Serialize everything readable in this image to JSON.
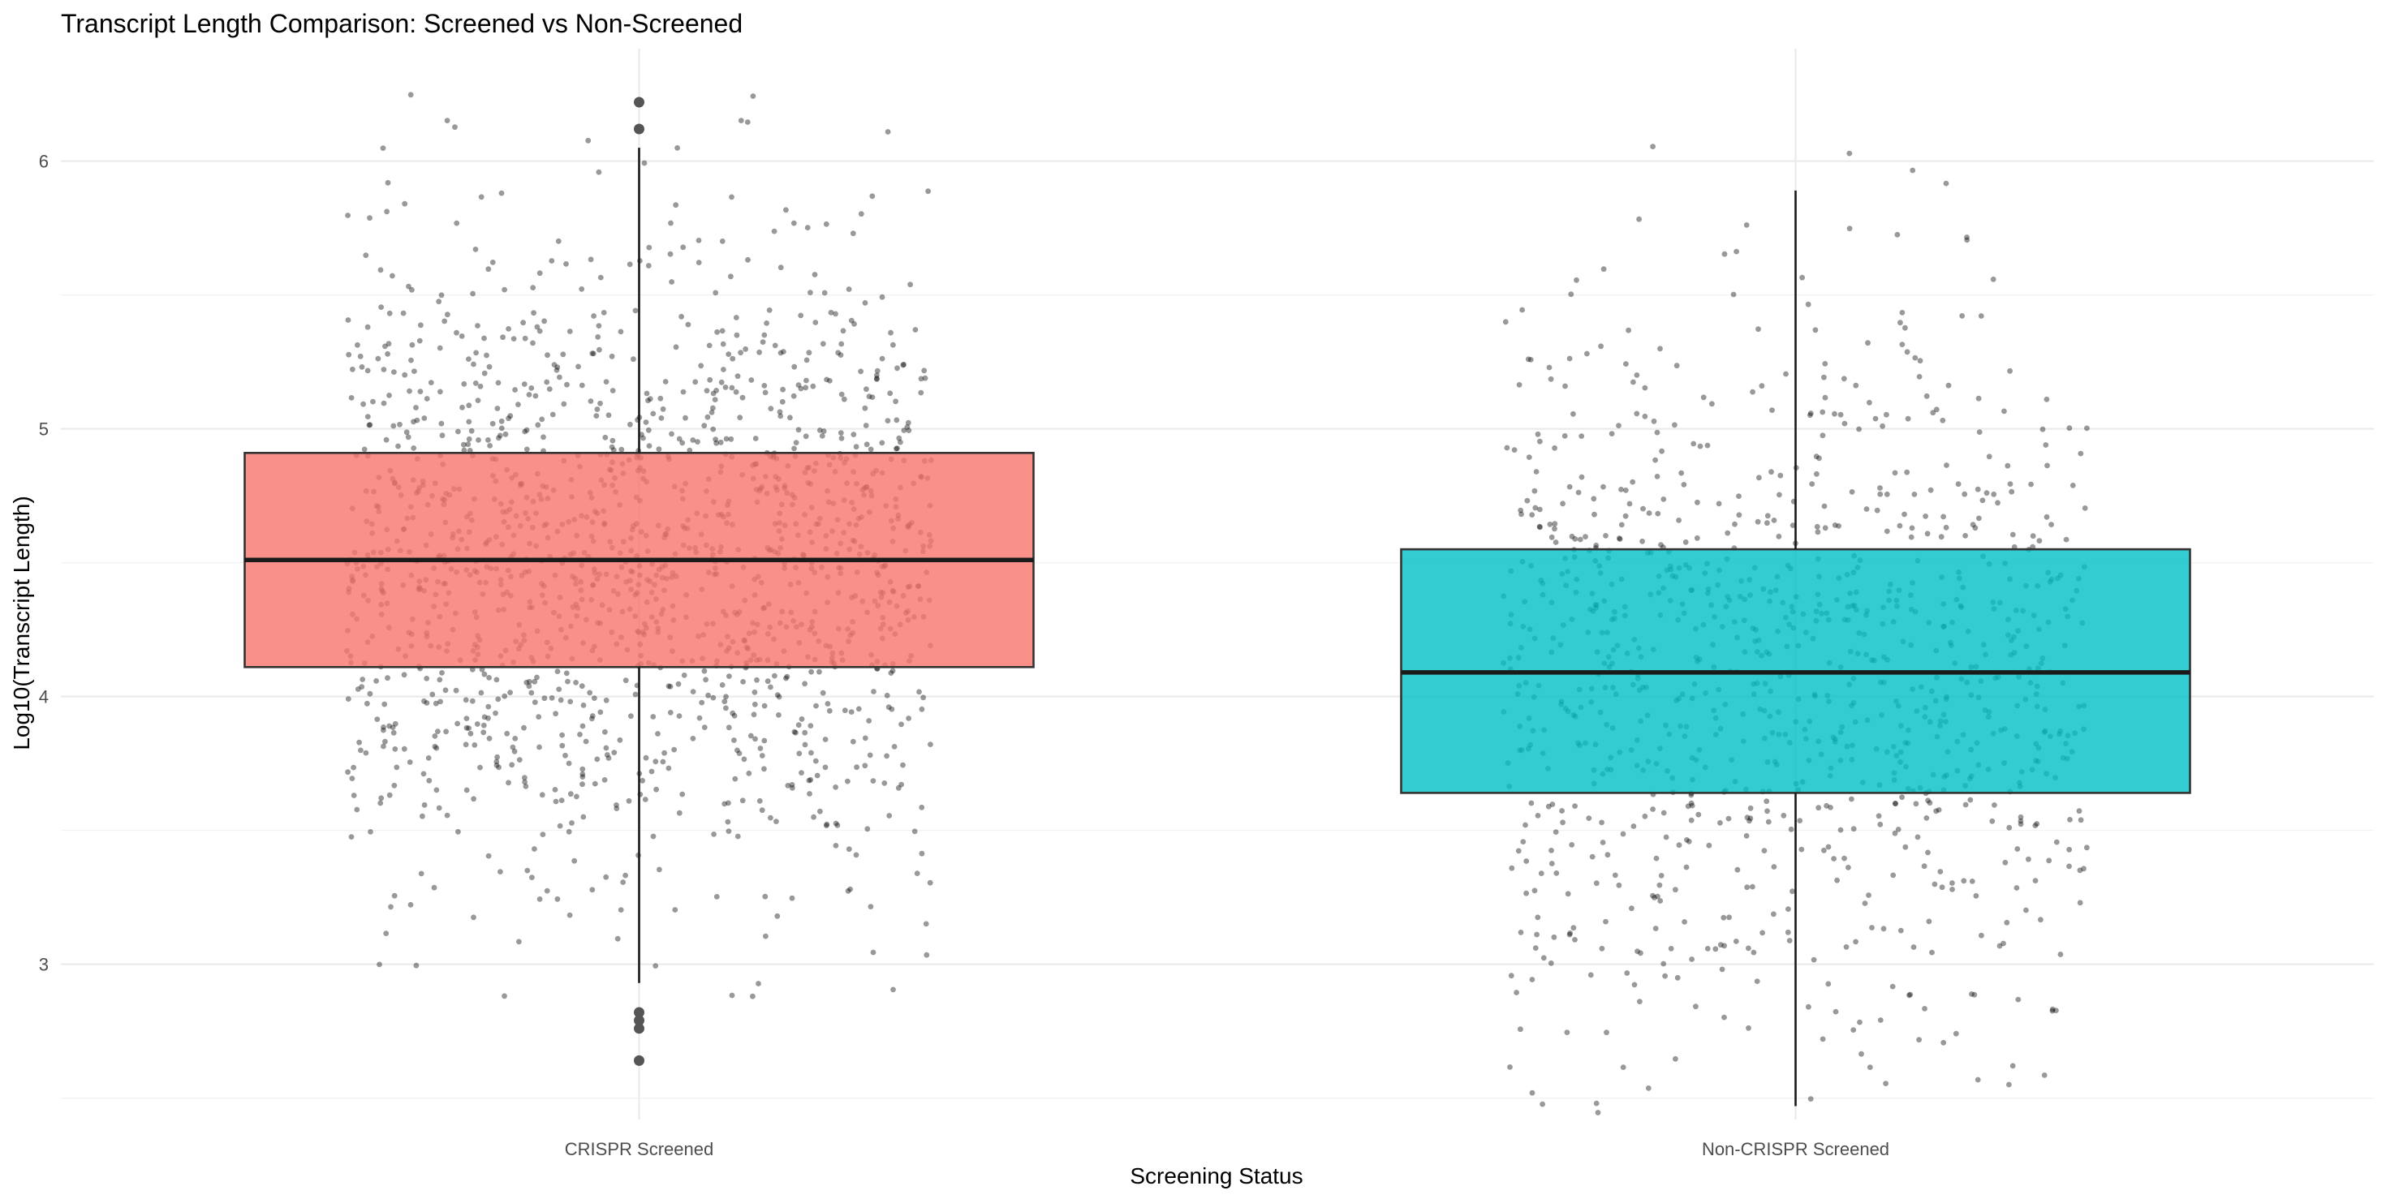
{
  "chart_data": {
    "type": "boxplot",
    "title": "Transcript Length Comparison: Screened vs Non-Screened",
    "xlabel": "Screening Status",
    "ylabel": "Log10(Transcript Length)",
    "ylim": [
      2.42,
      6.42
    ],
    "yticks": [
      3,
      4,
      5,
      6
    ],
    "categories": [
      "CRISPR Screened",
      "Non-CRISPR Screened"
    ],
    "grid": true,
    "legend": "none",
    "boxes": [
      {
        "category": "CRISPR Screened",
        "color": "#f8766d",
        "q1": 4.11,
        "median": 4.51,
        "q3": 4.91,
        "whisker_low": 2.93,
        "whisker_high": 6.05,
        "outliers": [
          6.22,
          6.12,
          2.82,
          2.79,
          2.76,
          2.64
        ],
        "jitter_points": 1500
      },
      {
        "category": "Non-CRISPR Screened",
        "color": "#00bfc4",
        "q1": 3.64,
        "median": 4.09,
        "q3": 4.55,
        "whisker_low": 2.47,
        "whisker_high": 5.89,
        "outliers": [],
        "jitter_points": 1000
      }
    ]
  }
}
